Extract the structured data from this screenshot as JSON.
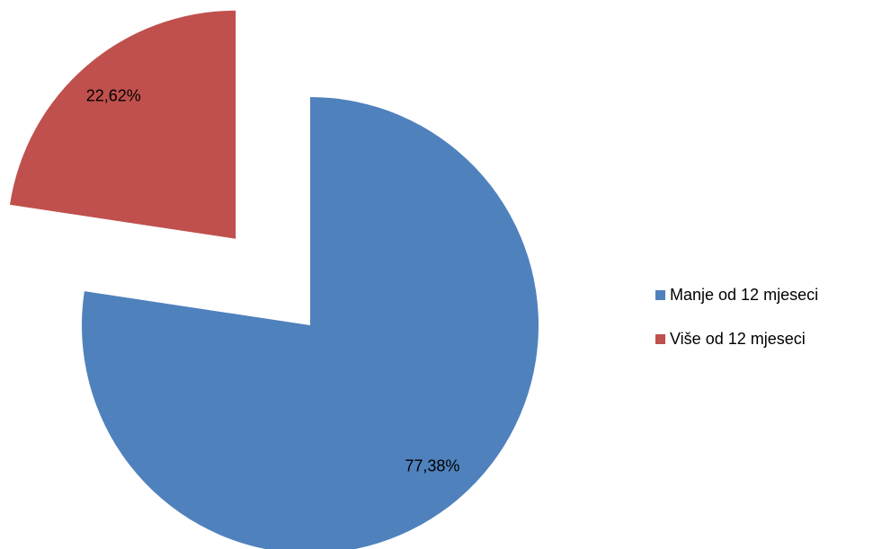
{
  "chart_data": {
    "type": "pie",
    "categories": [
      "Manje od 12 mjeseci",
      "Više od 12 mjeseci"
    ],
    "values": [
      77.38,
      22.62
    ],
    "value_labels": [
      "77,38%",
      "22,62%"
    ],
    "colors": [
      "#4f81bd",
      "#c0504d"
    ],
    "explode": [
      0,
      0.5
    ],
    "legend": "right"
  }
}
